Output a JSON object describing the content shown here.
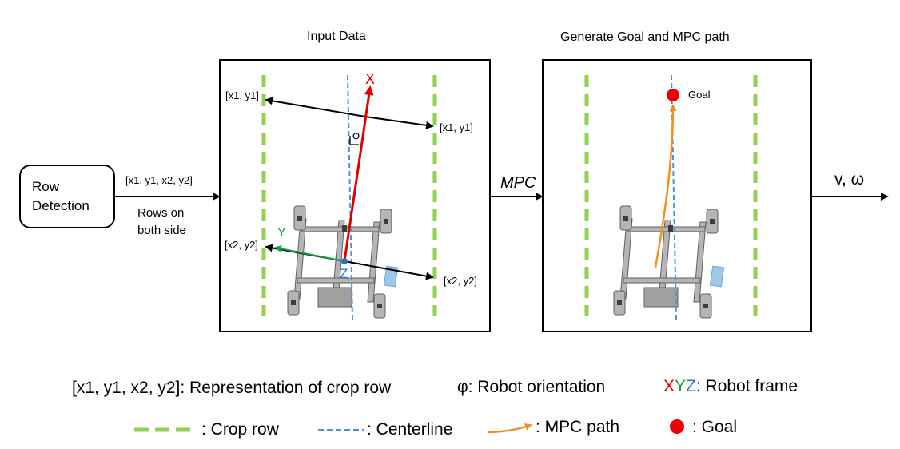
{
  "titles": {
    "input": "Input Data",
    "generate": "Generate Goal and MPC path"
  },
  "row_detection": {
    "line1": "Row",
    "line2": "Detection"
  },
  "arrow_labels": {
    "coords": "[x1, y1, x2, y2]",
    "rows_line1": "Rows on",
    "rows_line2": "both side",
    "mpc": "MPC",
    "output": "v, ω"
  },
  "input_panel": {
    "p1_left": "[x1, y1]",
    "p1_right": "[x1, y1]",
    "p2_left": "[x2, y2]",
    "p2_right": "[x2, y2]",
    "phi": "φ",
    "axis_x": "X",
    "axis_y": "Y",
    "axis_z": "Z"
  },
  "goal_panel": {
    "goal": "Goal"
  },
  "legend": {
    "representation": "[x1, y1, x2, y2]: Representation of crop row",
    "orientation": "φ: Robot orientation",
    "frame_x": "X",
    "frame_y": "Y",
    "frame_z": "Z",
    "frame_text": ": Robot frame",
    "crop_row": ": Crop row",
    "centerline": ": Centerline",
    "mpc_path": ": MPC path",
    "goal": ": Goal"
  },
  "colors": {
    "crop_row": "#92d050",
    "centerline": "#4a8fe0",
    "robot_x": "#e00000",
    "robot_y": "#1a9e4a",
    "robot_z": "#2e75b6",
    "mpc_path": "#f0901e",
    "goal": "#ee0000"
  }
}
